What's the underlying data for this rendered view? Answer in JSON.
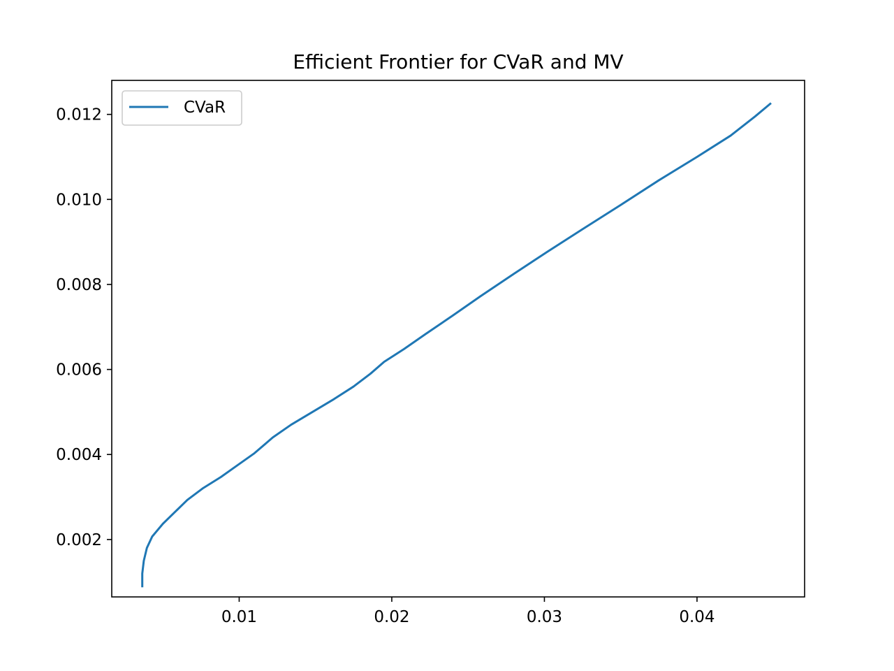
{
  "chart_data": {
    "type": "line",
    "title": "Efficient Frontier for CVaR and MV",
    "xlabel": "",
    "ylabel": "",
    "xlim": [
      0.00165,
      0.04705
    ],
    "ylim": [
      0.00065,
      0.0128
    ],
    "xticks": [
      {
        "value": 0.01,
        "label": "0.01"
      },
      {
        "value": 0.02,
        "label": "0.02"
      },
      {
        "value": 0.03,
        "label": "0.03"
      },
      {
        "value": 0.04,
        "label": "0.04"
      }
    ],
    "yticks": [
      {
        "value": 0.002,
        "label": "0.002"
      },
      {
        "value": 0.004,
        "label": "0.004"
      },
      {
        "value": 0.006,
        "label": "0.006"
      },
      {
        "value": 0.008,
        "label": "0.008"
      },
      {
        "value": 0.01,
        "label": "0.010"
      },
      {
        "value": 0.012,
        "label": "0.012"
      }
    ],
    "grid": false,
    "legend_position": "upper-left",
    "series": [
      {
        "name": "CVaR",
        "color": "#1f77b4",
        "x": [
          0.00365,
          0.00365,
          0.00375,
          0.00395,
          0.0043,
          0.005,
          0.0058,
          0.0066,
          0.0076,
          0.0088,
          0.0099,
          0.011,
          0.0122,
          0.0134,
          0.0148,
          0.0162,
          0.0175,
          0.0186,
          0.0195,
          0.0208,
          0.0222,
          0.024,
          0.0258,
          0.028,
          0.0302,
          0.0325,
          0.035,
          0.0375,
          0.04,
          0.0422,
          0.0438,
          0.0448
        ],
        "y": [
          0.0009,
          0.0012,
          0.0015,
          0.0018,
          0.00207,
          0.00237,
          0.00265,
          0.00293,
          0.0032,
          0.00347,
          0.00375,
          0.00403,
          0.0044,
          0.0047,
          0.005,
          0.0053,
          0.0056,
          0.0059,
          0.00618,
          0.00648,
          0.00683,
          0.00727,
          0.00772,
          0.00825,
          0.00877,
          0.0093,
          0.00987,
          0.01045,
          0.011,
          0.0115,
          0.01195,
          0.01225
        ]
      }
    ]
  }
}
